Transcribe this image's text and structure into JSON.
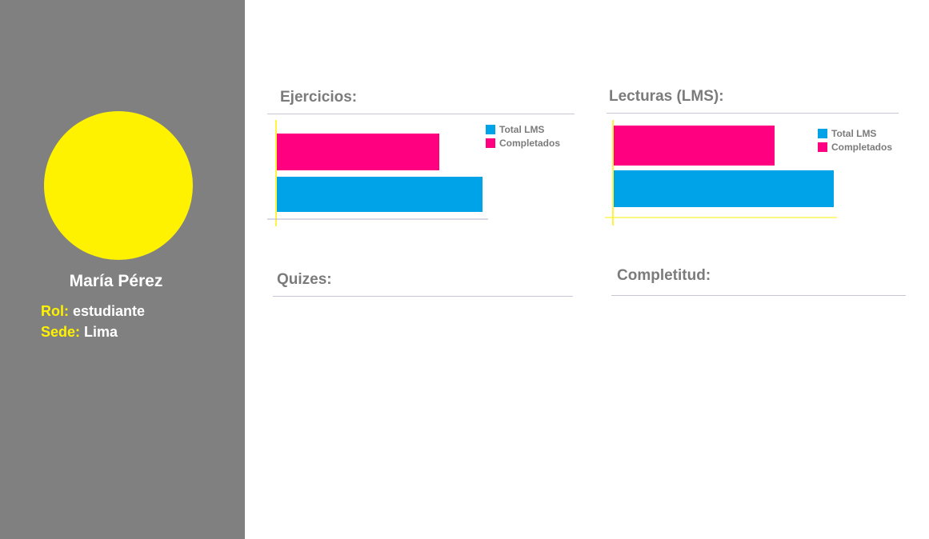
{
  "profile": {
    "name": "María Pérez",
    "role_label": "Rol:",
    "role_value": "estudiante",
    "site_label": "Sede:",
    "site_value": "Lima"
  },
  "sections": {
    "ejercicios": "Ejercicios:",
    "lecturas": "Lecturas (LMS):",
    "quizes": "Quizes:",
    "completitud": "Completitud:"
  },
  "colors": {
    "sidebar": "#808080",
    "avatar": "#fff200",
    "total": "#00a2e8",
    "completed": "#ff0080"
  },
  "chart_data": [
    {
      "type": "bar",
      "title": "Ejercicios:",
      "orientation": "horizontal",
      "series": [
        {
          "name": "Total LMS",
          "color": "#00a2e8",
          "values": [
            100
          ]
        },
        {
          "name": "Completados",
          "color": "#ff0080",
          "values": [
            79
          ]
        }
      ],
      "legend": "top-right"
    },
    {
      "type": "bar",
      "title": "Lecturas (LMS):",
      "orientation": "horizontal",
      "series": [
        {
          "name": "Total LMS",
          "color": "#00a2e8",
          "values": [
            100
          ]
        },
        {
          "name": "Completados",
          "color": "#ff0080",
          "values": [
            73
          ]
        }
      ],
      "legend": "top-right"
    }
  ]
}
